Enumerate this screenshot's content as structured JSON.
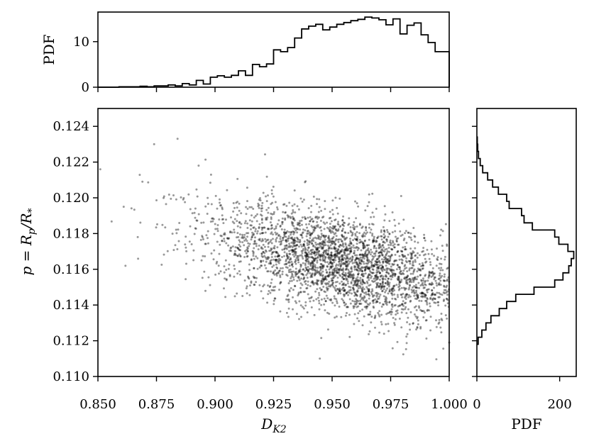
{
  "chart_data": [
    {
      "panel": "scatter",
      "type": "scatter",
      "xlabel": "D_K2",
      "ylabel": "p = R_p/R_*",
      "xlim": [
        0.85,
        1.0
      ],
      "ylim": [
        0.11,
        0.125
      ],
      "xticks": [
        "0.850",
        "0.875",
        "0.900",
        "0.925",
        "0.950",
        "0.975",
        "1.000"
      ],
      "yticks": [
        "0.110",
        "0.112",
        "0.114",
        "0.116",
        "0.118",
        "0.120",
        "0.122",
        "0.124"
      ],
      "point_color": "#000000",
      "point_alpha": 0.4,
      "n_points": 3000,
      "trend": {
        "x_mean": 0.955,
        "x_sd": 0.029,
        "y_at_x": [
          [
            0.85,
            0.1195
          ],
          [
            1.0,
            0.115
          ]
        ],
        "y_sd": 0.0014
      },
      "sample_points": [
        [
          0.851,
          0.1216
        ],
        [
          0.861,
          0.1195
        ],
        [
          0.867,
          0.1178
        ],
        [
          0.869,
          0.1209
        ],
        [
          0.874,
          0.123
        ],
        [
          0.884,
          0.1233
        ],
        [
          0.893,
          0.1218
        ],
        [
          1.0,
          0.1119
        ]
      ]
    },
    {
      "panel": "top-marginal",
      "type": "histogram",
      "ylabel": "PDF",
      "xlim": [
        0.85,
        1.0
      ],
      "ylim": [
        0,
        16.5
      ],
      "yticks": [
        "0",
        "10"
      ],
      "bin_edges": [
        0.85,
        0.853,
        0.856,
        0.859,
        0.862,
        0.865,
        0.868,
        0.871,
        0.874,
        0.877,
        0.88,
        0.883,
        0.886,
        0.889,
        0.892,
        0.895,
        0.898,
        0.901,
        0.904,
        0.907,
        0.91,
        0.913,
        0.916,
        0.919,
        0.922,
        0.925,
        0.928,
        0.931,
        0.934,
        0.937,
        0.94,
        0.943,
        0.946,
        0.949,
        0.952,
        0.955,
        0.958,
        0.961,
        0.964,
        0.967,
        0.97,
        0.973,
        0.976,
        0.979,
        0.982,
        0.985,
        0.988,
        0.991,
        0.994,
        0.997,
        1.0
      ],
      "values": [
        0.0,
        0.0,
        0.0,
        0.1,
        0.1,
        0.1,
        0.2,
        0.1,
        0.3,
        0.3,
        0.5,
        0.3,
        0.8,
        0.5,
        1.5,
        0.7,
        2.2,
        2.5,
        2.2,
        2.6,
        3.6,
        2.6,
        5.0,
        4.5,
        5.1,
        8.2,
        7.8,
        8.7,
        10.8,
        12.8,
        13.4,
        13.8,
        12.6,
        13.2,
        13.8,
        14.2,
        14.6,
        14.9,
        15.4,
        15.2,
        14.8,
        13.7,
        15.0,
        11.7,
        13.6,
        14.1,
        11.5,
        9.8,
        7.8,
        7.8
      ]
    },
    {
      "panel": "right-marginal",
      "type": "histogram",
      "orientation": "horizontal",
      "xlabel": "PDF",
      "xlim": [
        0,
        240
      ],
      "xticks": [
        "0",
        "200"
      ],
      "ylim": [
        0.11,
        0.125
      ],
      "bin_edges": [
        0.1118,
        0.1122,
        0.1126,
        0.113,
        0.1134,
        0.1138,
        0.1142,
        0.1146,
        0.115,
        0.1154,
        0.1158,
        0.1162,
        0.1166,
        0.117,
        0.1174,
        0.1178,
        0.1182,
        0.1186,
        0.119,
        0.1194,
        0.1198,
        0.1202,
        0.1206,
        0.121,
        0.1214,
        0.1218,
        0.1222,
        0.1226,
        0.123,
        0.1234
      ],
      "values": [
        3,
        12,
        22,
        34,
        54,
        72,
        94,
        138,
        188,
        208,
        222,
        228,
        234,
        220,
        198,
        188,
        134,
        114,
        108,
        78,
        72,
        52,
        38,
        26,
        14,
        8,
        4,
        2,
        1
      ]
    }
  ]
}
